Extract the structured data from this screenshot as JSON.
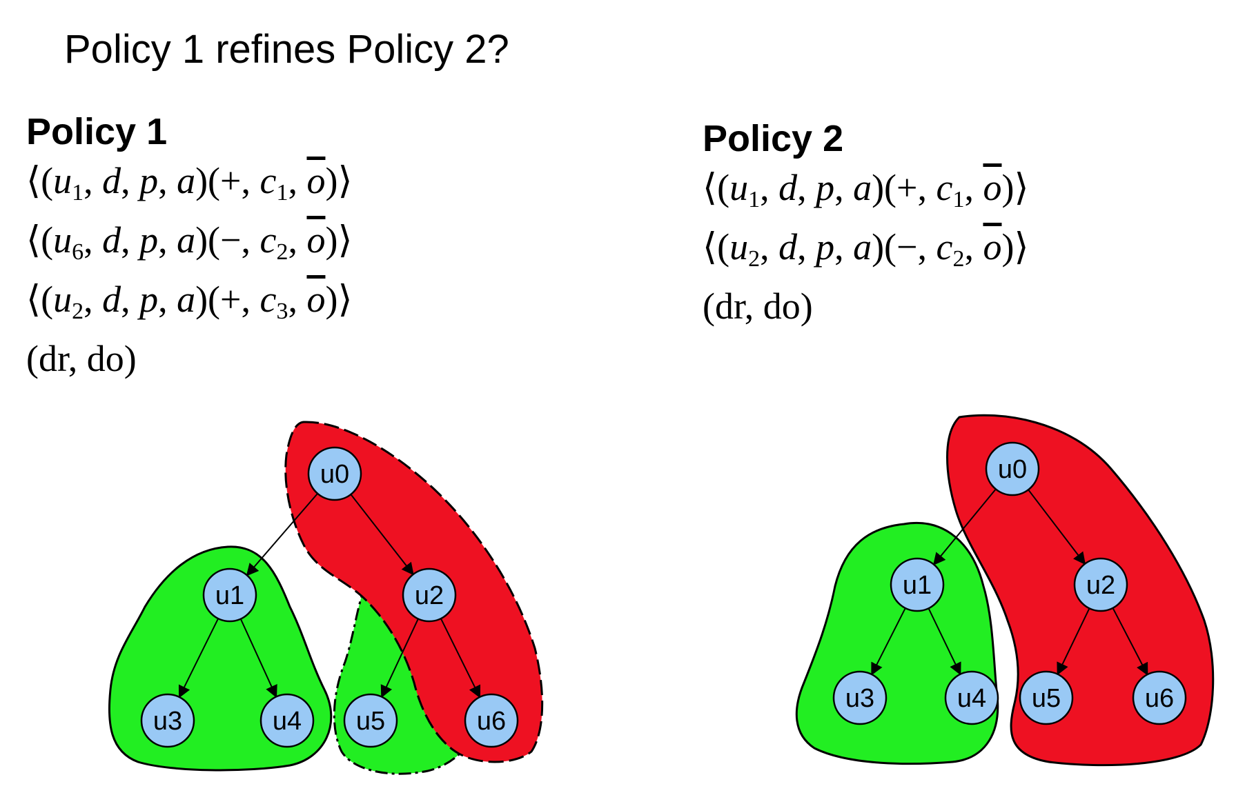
{
  "question": "Policy 1 refines Policy 2?",
  "policy1": {
    "title": "Policy 1",
    "rules": [
      {
        "user": "u",
        "sub": "1",
        "sign": "+",
        "cond": "c",
        "csub": "1"
      },
      {
        "user": "u",
        "sub": "6",
        "sign": "−",
        "cond": "c",
        "csub": "2"
      },
      {
        "user": "u",
        "sub": "2",
        "sign": "+",
        "cond": "c",
        "csub": "3"
      }
    ],
    "defaults": "(dr, do)"
  },
  "policy2": {
    "title": "Policy 2",
    "rules": [
      {
        "user": "u",
        "sub": "1",
        "sign": "+",
        "cond": "c",
        "csub": "1"
      },
      {
        "user": "u",
        "sub": "2",
        "sign": "−",
        "cond": "c",
        "csub": "2"
      }
    ],
    "defaults": "(dr, do)"
  },
  "rule_parts": {
    "d": "d",
    "p": "p",
    "a": "a",
    "o": "o"
  },
  "colors": {
    "permit": "#22ee22",
    "deny": "#ee1122",
    "node": "#99c9f5"
  },
  "graph1": {
    "nodes": [
      "u0",
      "u1",
      "u2",
      "u3",
      "u4",
      "u5",
      "u6"
    ],
    "edges": [
      [
        "u0",
        "u1"
      ],
      [
        "u0",
        "u2"
      ],
      [
        "u1",
        "u3"
      ],
      [
        "u1",
        "u4"
      ],
      [
        "u2",
        "u5"
      ],
      [
        "u2",
        "u6"
      ]
    ]
  },
  "graph2": {
    "nodes": [
      "u0",
      "u1",
      "u2",
      "u3",
      "u4",
      "u5",
      "u6"
    ],
    "edges": [
      [
        "u0",
        "u1"
      ],
      [
        "u0",
        "u2"
      ],
      [
        "u1",
        "u3"
      ],
      [
        "u1",
        "u4"
      ],
      [
        "u2",
        "u5"
      ],
      [
        "u2",
        "u6"
      ]
    ]
  }
}
